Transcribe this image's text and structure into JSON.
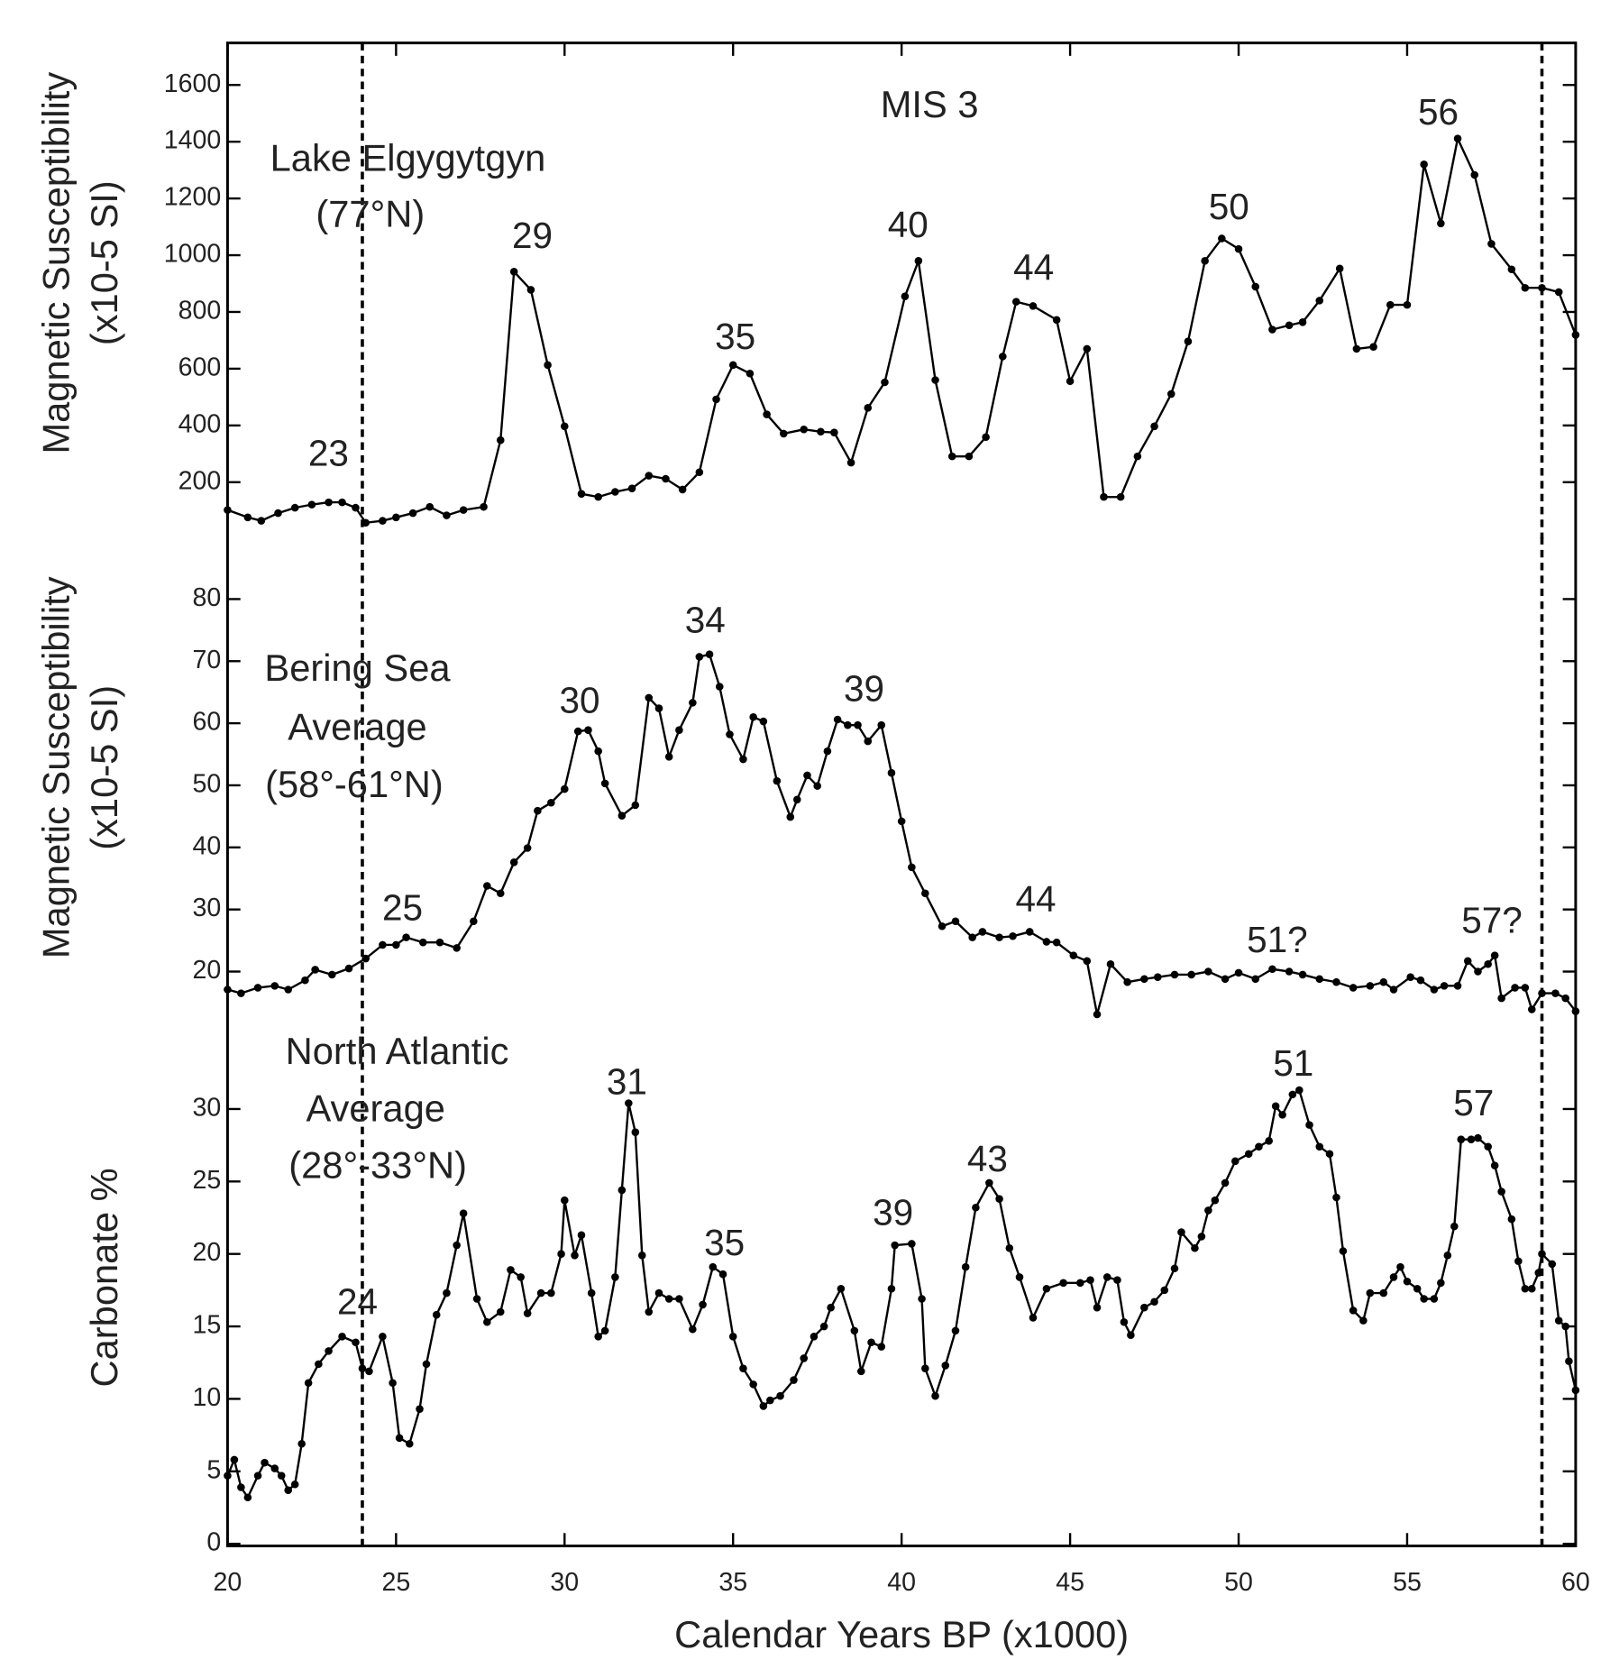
{
  "chart_data": [
    {
      "type": "line",
      "ylabel": [
        "Magnetic Susceptibility",
        "(x10-5 SI)"
      ],
      "location": [
        "Lake Elgygytgyn",
        "(77°N)"
      ],
      "period_label": "MIS 3",
      "xlim": [
        20,
        60
      ],
      "ylim": [
        0,
        1750
      ],
      "yticks": [
        200,
        400,
        600,
        800,
        1000,
        1200,
        1400,
        1600
      ],
      "vlines": [
        24,
        59
      ],
      "color": "#000000",
      "annotations": [
        "23",
        "29",
        "35",
        "40",
        "44",
        "50",
        "56"
      ],
      "x": [
        20.0,
        20.6,
        21.0,
        21.5,
        22.0,
        22.5,
        23.0,
        23.4,
        23.8,
        24.1,
        24.6,
        25.0,
        25.5,
        26.0,
        26.5,
        27.0,
        27.6,
        28.1,
        28.5,
        29.0,
        29.5,
        30.0,
        30.5,
        31.0,
        31.5,
        32.0,
        32.5,
        33.0,
        33.5,
        34.0,
        34.5,
        35.0,
        35.5,
        36.0,
        36.5,
        37.1,
        37.6,
        38.0,
        38.5,
        39.0,
        39.5,
        40.1,
        40.5,
        41.0,
        41.5,
        42.0,
        42.5,
        43.0,
        43.4,
        43.9,
        44.6,
        45.0,
        45.5,
        46.0,
        46.5,
        47.0,
        47.5,
        48.0,
        48.5,
        49.0,
        49.5,
        50.0,
        50.5,
        51.0,
        51.5,
        51.9,
        52.4,
        53.0,
        53.5,
        54.0,
        54.5,
        55.0,
        55.5,
        56.0,
        56.5,
        57.0,
        57.5,
        58.1,
        58.5,
        59.0,
        59.5,
        60.0
      ],
      "values": [
        102,
        76,
        64,
        91,
        110,
        121,
        129,
        129,
        110,
        57,
        64,
        76,
        91,
        113,
        83,
        102,
        113,
        348,
        942,
        878,
        613,
        397,
        159,
        148,
        166,
        178,
        223,
        212,
        174,
        235,
        492,
        613,
        583,
        439,
        371,
        386,
        378,
        375,
        269,
        462,
        552,
        855,
        980,
        560,
        291,
        291,
        359,
        643,
        836,
        821,
        772,
        556,
        670,
        148,
        148,
        291,
        397,
        511,
        696,
        980,
        1059,
        1022,
        889,
        738,
        753,
        764,
        840,
        953,
        670,
        677,
        825,
        825,
        1320,
        1112,
        1411,
        1283,
        1040,
        950,
        885,
        885,
        870,
        719
      ]
    },
    {
      "type": "line",
      "ylabel": [
        "Magnetic Susceptibility",
        "(x10-5 SI)"
      ],
      "location": [
        "Bering Sea",
        "Average",
        "(58°-61°N)"
      ],
      "xlim": [
        20,
        60
      ],
      "ylim": [
        10,
        90
      ],
      "yticks": [
        20,
        30,
        40,
        50,
        60,
        70,
        80
      ],
      "vlines": [
        24,
        59
      ],
      "color": "#000000",
      "annotations": [
        "25",
        "30",
        "34",
        "39",
        "44",
        "51?",
        "57?"
      ],
      "x": [
        20.0,
        20.4,
        20.9,
        21.4,
        21.8,
        22.3,
        22.6,
        23.1,
        23.6,
        24.1,
        24.6,
        25.0,
        25.3,
        25.8,
        26.3,
        26.8,
        27.3,
        27.7,
        28.1,
        28.5,
        28.9,
        29.2,
        29.6,
        30.0,
        30.4,
        30.7,
        31.0,
        31.2,
        31.7,
        32.1,
        32.5,
        32.8,
        33.1,
        33.4,
        33.8,
        34.0,
        34.3,
        34.6,
        34.9,
        35.3,
        35.6,
        35.9,
        36.3,
        36.7,
        36.9,
        37.2,
        37.5,
        37.8,
        38.1,
        38.4,
        38.7,
        39.0,
        39.4,
        39.7,
        40.0,
        40.3,
        40.7,
        41.2,
        41.6,
        42.1,
        42.4,
        42.9,
        43.3,
        43.8,
        44.3,
        44.6,
        45.1,
        45.5,
        45.8,
        46.2,
        46.7,
        47.2,
        47.6,
        48.1,
        48.6,
        49.1,
        49.6,
        50.0,
        50.5,
        51.0,
        51.5,
        51.9,
        52.4,
        52.9,
        53.4,
        53.9,
        54.3,
        54.6,
        55.1,
        55.4,
        55.8,
        56.1,
        56.5,
        56.8,
        57.1,
        57.4,
        57.6,
        57.8,
        58.2,
        58.5,
        58.7,
        59.0,
        59.4,
        59.7,
        60.0
      ],
      "values": [
        17.1,
        16.5,
        17.4,
        17.7,
        17.1,
        18.6,
        20.3,
        19.5,
        20.5,
        22.1,
        24.3,
        24.3,
        25.5,
        24.7,
        24.7,
        23.8,
        28.1,
        33.8,
        32.6,
        37.6,
        39.9,
        45.9,
        47.2,
        49.4,
        58.7,
        58.9,
        55.5,
        50.3,
        45.1,
        46.8,
        64.1,
        62.4,
        54.6,
        58.9,
        63.3,
        70.7,
        71.1,
        65.9,
        58.2,
        54.2,
        61.0,
        60.3,
        50.7,
        44.9,
        47.7,
        51.6,
        49.9,
        55.5,
        60.6,
        59.7,
        59.7,
        57.1,
        59.7,
        52.0,
        44.2,
        36.8,
        32.6,
        27.3,
        28.1,
        25.5,
        26.4,
        25.5,
        25.7,
        26.4,
        24.8,
        24.7,
        22.6,
        21.7,
        13.1,
        21.2,
        18.3,
        18.8,
        19.1,
        19.5,
        19.5,
        20.0,
        18.8,
        19.8,
        18.8,
        20.4,
        20.0,
        19.5,
        18.8,
        18.3,
        17.4,
        17.7,
        18.3,
        17.1,
        19.1,
        18.6,
        17.1,
        17.7,
        17.7,
        21.7,
        20.0,
        21.2,
        22.6,
        15.7,
        17.4,
        17.4,
        13.9,
        16.5,
        16.5,
        15.7,
        13.6
      ]
    },
    {
      "type": "line",
      "ylabel": [
        "Carbonate %"
      ],
      "location": [
        "North Atlantic",
        "Average",
        "(28°-33°N)"
      ],
      "xlabel": "Calendar Years BP (x1000)",
      "xlim": [
        20,
        60
      ],
      "xticks": [
        20,
        25,
        30,
        35,
        40,
        45,
        50,
        55,
        60
      ],
      "ylim": [
        0,
        35
      ],
      "yticks": [
        0,
        5,
        10,
        15,
        20,
        25,
        30
      ],
      "vlines": [
        24,
        59
      ],
      "color": "#000000",
      "annotations": [
        "24",
        "31",
        "35",
        "39",
        "43",
        "51",
        "57"
      ],
      "x": [
        20.0,
        20.2,
        20.4,
        20.6,
        20.9,
        21.1,
        21.4,
        21.6,
        21.8,
        22.0,
        22.2,
        22.4,
        22.7,
        23.0,
        23.4,
        23.8,
        24.0,
        24.2,
        24.6,
        24.9,
        25.1,
        25.4,
        25.7,
        25.9,
        26.2,
        26.5,
        26.8,
        27.0,
        27.4,
        27.7,
        28.1,
        28.4,
        28.7,
        28.9,
        29.3,
        29.6,
        29.9,
        30.0,
        30.3,
        30.5,
        30.8,
        31.0,
        31.2,
        31.5,
        31.7,
        31.9,
        32.1,
        32.3,
        32.5,
        32.8,
        33.1,
        33.4,
        33.8,
        34.1,
        34.4,
        34.7,
        35.0,
        35.3,
        35.6,
        35.9,
        36.1,
        36.4,
        36.8,
        37.1,
        37.4,
        37.7,
        37.9,
        38.2,
        38.6,
        38.8,
        39.1,
        39.4,
        39.7,
        39.8,
        40.3,
        40.6,
        40.7,
        41.0,
        41.3,
        41.6,
        41.9,
        42.2,
        42.6,
        42.9,
        43.2,
        43.5,
        43.9,
        44.3,
        44.8,
        45.3,
        45.6,
        45.8,
        46.1,
        46.4,
        46.6,
        46.8,
        47.2,
        47.5,
        47.8,
        48.1,
        48.3,
        48.7,
        48.9,
        49.1,
        49.3,
        49.6,
        49.9,
        50.3,
        50.6,
        50.9,
        51.1,
        51.3,
        51.6,
        51.8,
        52.1,
        52.4,
        52.7,
        52.9,
        53.1,
        53.4,
        53.7,
        53.9,
        54.3,
        54.6,
        54.8,
        55.0,
        55.3,
        55.5,
        55.8,
        56.0,
        56.2,
        56.4,
        56.6,
        56.9,
        57.1,
        57.4,
        57.6,
        57.8,
        58.1,
        58.3,
        58.5,
        58.7,
        58.9,
        59.0,
        59.3,
        59.5,
        59.7,
        59.8,
        60.0
      ],
      "values": [
        4.7,
        5.8,
        3.9,
        3.2,
        4.7,
        5.6,
        5.2,
        4.7,
        3.7,
        4.1,
        6.9,
        11.1,
        12.4,
        13.3,
        14.3,
        13.9,
        12.1,
        11.9,
        14.3,
        11.1,
        7.3,
        6.9,
        9.3,
        12.4,
        15.8,
        17.3,
        20.6,
        22.8,
        16.9,
        15.3,
        16.0,
        18.9,
        18.4,
        15.9,
        17.3,
        17.3,
        20.0,
        23.7,
        19.9,
        21.3,
        17.3,
        14.3,
        14.7,
        18.4,
        24.4,
        30.4,
        28.4,
        19.9,
        16.0,
        17.3,
        16.9,
        16.9,
        14.8,
        16.5,
        19.1,
        18.6,
        14.3,
        12.1,
        11.0,
        9.5,
        9.9,
        10.2,
        11.3,
        12.8,
        14.3,
        15.0,
        16.3,
        17.6,
        14.7,
        11.9,
        13.9,
        13.6,
        17.6,
        20.6,
        20.7,
        16.9,
        12.1,
        10.2,
        12.3,
        14.7,
        19.1,
        23.2,
        24.9,
        23.8,
        20.4,
        18.4,
        15.6,
        17.6,
        18.0,
        18.0,
        18.2,
        16.3,
        18.4,
        18.2,
        15.3,
        14.4,
        16.3,
        16.7,
        17.5,
        19.0,
        21.5,
        20.4,
        21.2,
        23.0,
        23.7,
        24.9,
        26.4,
        26.9,
        27.4,
        27.8,
        30.2,
        29.6,
        31.0,
        31.3,
        28.9,
        27.4,
        26.9,
        23.9,
        20.2,
        16.1,
        15.4,
        17.3,
        17.3,
        18.4,
        19.1,
        18.1,
        17.6,
        16.9,
        16.9,
        18.0,
        19.9,
        21.9,
        27.9,
        27.9,
        28.0,
        27.4,
        26.1,
        24.3,
        22.4,
        19.5,
        17.6,
        17.6,
        18.7,
        20.0,
        19.3,
        15.4,
        15.0,
        12.6,
        10.6
      ]
    }
  ]
}
